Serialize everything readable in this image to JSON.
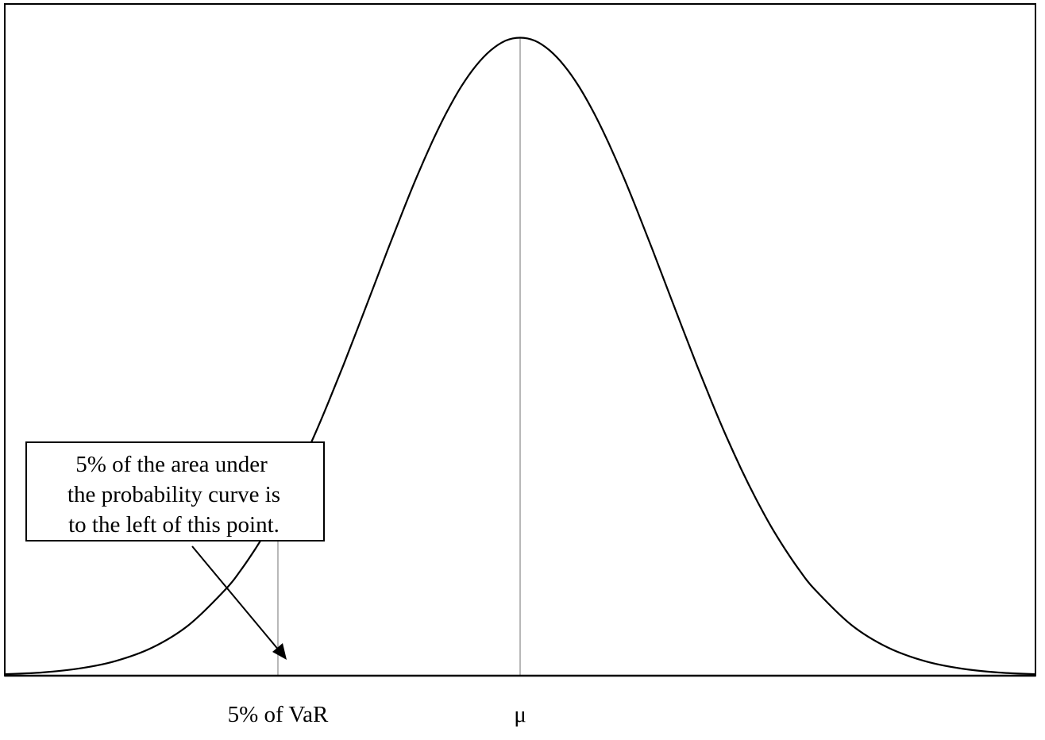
{
  "chart_data": {
    "type": "line",
    "title": "",
    "xlabel": "",
    "ylabel": "",
    "grid": false,
    "xlim": [
      -3.5,
      3.5
    ],
    "ylim": [
      0,
      0.42
    ],
    "series": [
      {
        "name": "",
        "x": [
          -3.5,
          -3.25,
          -3.0,
          -2.75,
          -2.5,
          -2.25,
          -2.0,
          -1.9,
          -1.8,
          -1.7,
          -1.645,
          -1.6,
          -1.5,
          -1.4,
          -1.3,
          -1.2,
          -1.1,
          -1.0,
          -0.9,
          -0.8,
          -0.7,
          -0.6,
          -0.5,
          -0.4,
          -0.3,
          -0.2,
          -0.1,
          0.0,
          0.1,
          0.2,
          0.3,
          0.4,
          0.5,
          0.6,
          0.7,
          0.8,
          0.9,
          1.0,
          1.1,
          1.2,
          1.3,
          1.4,
          1.5,
          1.6,
          1.7,
          1.8,
          1.9,
          2.0,
          2.25,
          2.5,
          2.75,
          3.0,
          3.25,
          3.5
        ],
        "y": [
          0.0009,
          0.002,
          0.0044,
          0.0091,
          0.0175,
          0.0317,
          0.054,
          0.0656,
          0.079,
          0.094,
          0.103,
          0.1109,
          0.1295,
          0.1497,
          0.1714,
          0.1942,
          0.2179,
          0.242,
          0.2661,
          0.2897,
          0.3123,
          0.3332,
          0.3521,
          0.3683,
          0.3814,
          0.391,
          0.397,
          0.3989,
          0.397,
          0.391,
          0.3814,
          0.3683,
          0.3521,
          0.3332,
          0.3123,
          0.2897,
          0.2661,
          0.242,
          0.2179,
          0.1942,
          0.1714,
          0.1497,
          0.1295,
          0.1109,
          0.094,
          0.079,
          0.0656,
          0.054,
          0.0317,
          0.0175,
          0.0091,
          0.0044,
          0.002,
          0.0009
        ]
      }
    ],
    "var_x": -1.645,
    "mean_x": 0.0,
    "tick_labels": {
      "var": "5% of VaR",
      "mean": "μ"
    },
    "annotation": {
      "lines": [
        "5% of the area under",
        "the probability curve is",
        "to the left of this point."
      ]
    }
  }
}
